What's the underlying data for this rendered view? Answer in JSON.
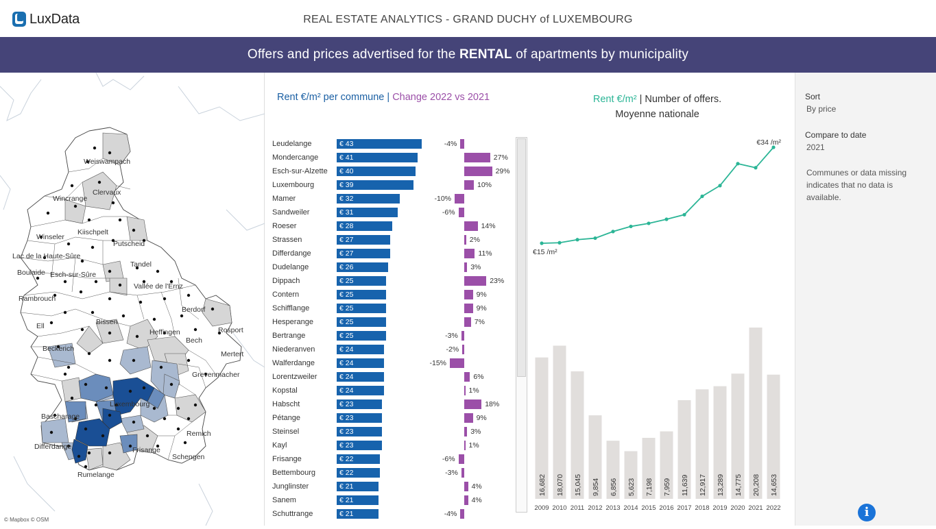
{
  "brand": {
    "name_a": "Lux",
    "name_b": "Data"
  },
  "app_title": "REAL ESTATE ANALYTICS - GRAND DUCHY of LUXEMBOURG",
  "banner": {
    "pre": "Offers and prices advertised for the ",
    "strong": "RENTAL",
    "post": " of apartments by municipality"
  },
  "map": {
    "attribution": "© Mapbox © OSM",
    "labels": [
      "Weiswampach",
      "Clervaux",
      "Wincrange",
      "Kiischpelt",
      "Winseler",
      "Putscheid",
      "Lac de la Haute-Sûre",
      "Tandel",
      "Boulaide",
      "Esch-sur-Sûre",
      "Vallée de l'Ernz",
      "Rambrouch",
      "Berdorf",
      "Ell",
      "Bissen",
      "Heffingen",
      "Rosport",
      "Bech",
      "Beckerich",
      "Mertert",
      "Grevenmacher",
      "Luxembourg",
      "Bascharage",
      "Remich",
      "Differdange",
      "Frisange",
      "Schengen",
      "Rumelange"
    ]
  },
  "ranking": {
    "head_rent": "Rent €/m²  per commune",
    "sep": "|",
    "head_change": "Change 2022 vs 2021",
    "rows": [
      {
        "name": "Leudelange",
        "rent": 43,
        "rent_label": "€ 43",
        "change": -4,
        "change_label": "-4%"
      },
      {
        "name": "Mondercange",
        "rent": 41,
        "rent_label": "€ 41",
        "change": 27,
        "change_label": "27%"
      },
      {
        "name": "Esch-sur-Alzette",
        "rent": 40,
        "rent_label": "€ 40",
        "change": 29,
        "change_label": "29%"
      },
      {
        "name": "Luxembourg",
        "rent": 39,
        "rent_label": "€ 39",
        "change": 10,
        "change_label": "10%"
      },
      {
        "name": "Mamer",
        "rent": 32,
        "rent_label": "€ 32",
        "change": -10,
        "change_label": "-10%"
      },
      {
        "name": "Sandweiler",
        "rent": 31,
        "rent_label": "€ 31",
        "change": -6,
        "change_label": "-6%"
      },
      {
        "name": "Roeser",
        "rent": 28,
        "rent_label": "€ 28",
        "change": 14,
        "change_label": "14%"
      },
      {
        "name": "Strassen",
        "rent": 27,
        "rent_label": "€ 27",
        "change": 2,
        "change_label": "2%"
      },
      {
        "name": "Differdange",
        "rent": 27,
        "rent_label": "€ 27",
        "change": 11,
        "change_label": "11%"
      },
      {
        "name": "Dudelange",
        "rent": 26,
        "rent_label": "€ 26",
        "change": 3,
        "change_label": "3%"
      },
      {
        "name": "Dippach",
        "rent": 25,
        "rent_label": "€ 25",
        "change": 23,
        "change_label": "23%"
      },
      {
        "name": "Contern",
        "rent": 25,
        "rent_label": "€ 25",
        "change": 9,
        "change_label": "9%"
      },
      {
        "name": "Schifflange",
        "rent": 25,
        "rent_label": "€ 25",
        "change": 9,
        "change_label": "9%"
      },
      {
        "name": "Hesperange",
        "rent": 25,
        "rent_label": "€ 25",
        "change": 7,
        "change_label": "7%"
      },
      {
        "name": "Bertrange",
        "rent": 25,
        "rent_label": "€ 25",
        "change": -3,
        "change_label": "-3%"
      },
      {
        "name": "Niederanven",
        "rent": 24,
        "rent_label": "€ 24",
        "change": -2,
        "change_label": "-2%"
      },
      {
        "name": "Walferdange",
        "rent": 24,
        "rent_label": "€ 24",
        "change": -15,
        "change_label": "-15%"
      },
      {
        "name": "Lorentzweiler",
        "rent": 24,
        "rent_label": "€ 24",
        "change": 6,
        "change_label": "6%"
      },
      {
        "name": "Kopstal",
        "rent": 24,
        "rent_label": "€ 24",
        "change": 1,
        "change_label": "1%"
      },
      {
        "name": "Habscht",
        "rent": 23,
        "rent_label": "€ 23",
        "change": 18,
        "change_label": "18%"
      },
      {
        "name": "Pétange",
        "rent": 23,
        "rent_label": "€ 23",
        "change": 9,
        "change_label": "9%"
      },
      {
        "name": "Steinsel",
        "rent": 23,
        "rent_label": "€ 23",
        "change": 3,
        "change_label": "3%"
      },
      {
        "name": "Kayl",
        "rent": 23,
        "rent_label": "€ 23",
        "change": 1,
        "change_label": "1%"
      },
      {
        "name": "Frisange",
        "rent": 22,
        "rent_label": "€ 22",
        "change": -6,
        "change_label": "-6%"
      },
      {
        "name": "Bettembourg",
        "rent": 22,
        "rent_label": "€ 22",
        "change": -3,
        "change_label": "-3%"
      },
      {
        "name": "Junglinster",
        "rent": 21,
        "rent_label": "€ 21",
        "change": 4,
        "change_label": "4%"
      },
      {
        "name": "Sanem",
        "rent": 21,
        "rent_label": "€ 21",
        "change": 4,
        "change_label": "4%"
      },
      {
        "name": "Schuttrange",
        "rent": 21,
        "rent_label": "€ 21",
        "change": -4,
        "change_label": "-4%"
      }
    ]
  },
  "trend": {
    "head_rent": "Rent €/m²",
    "sep": "|",
    "head_offers": "Number of offers.",
    "head_line2": "Moyenne nationale",
    "first_label": "€15 /m²",
    "last_label": "€34 /m²"
  },
  "chart_data": {
    "type": "line+bar",
    "title": "Rent €/m² | Number of offers. Moyenne nationale",
    "categories": [
      "2009",
      "2010",
      "2011",
      "2012",
      "2013",
      "2014",
      "2015",
      "2016",
      "2017",
      "2018",
      "2019",
      "2020",
      "2021",
      "2022"
    ],
    "series": [
      {
        "name": "Rent €/m²",
        "type": "line",
        "values": [
          15,
          15.1,
          15.7,
          16.0,
          17.3,
          18.3,
          18.9,
          19.7,
          20.6,
          24.2,
          26.3,
          30.6,
          29.8,
          33.8
        ]
      },
      {
        "name": "Number of offers",
        "type": "bar",
        "values": [
          16682,
          18070,
          15045,
          9854,
          6856,
          5623,
          7198,
          7959,
          11639,
          12917,
          13289,
          14775,
          20208,
          14653
        ],
        "labels": [
          "16,682",
          "18,070",
          "15,045",
          "9,854",
          "6,856",
          "5,623",
          "7,198",
          "7,959",
          "11,639",
          "12,917",
          "13,289",
          "14,775",
          "20,208",
          "14,653"
        ]
      }
    ],
    "colors": {
      "line": "#2bb596",
      "bar": "#e1dedc"
    }
  },
  "sidebar": {
    "sort_label": "Sort",
    "sort_value": "By price",
    "compare_label": "Compare to date",
    "compare_value": "2021",
    "note": "Communes or data missing indicates that no data is available.",
    "info_glyph": "i"
  }
}
